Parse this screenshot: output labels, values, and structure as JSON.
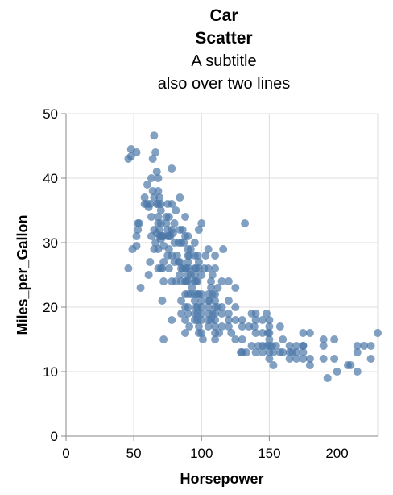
{
  "chart_data": {
    "type": "scatter",
    "title_lines": [
      "Car",
      "Scatter"
    ],
    "subtitle_lines": [
      "A subtitle",
      "also over two lines"
    ],
    "xlabel": "Horsepower",
    "ylabel": "Miles_per_Gallon",
    "xlim": [
      0,
      230
    ],
    "ylim": [
      0,
      50
    ],
    "x_ticks": [
      0,
      50,
      100,
      150,
      200
    ],
    "y_ticks": [
      0,
      10,
      20,
      30,
      40,
      50
    ],
    "grid": true,
    "point_color": "#4c78a8",
    "points": [
      [
        46,
        26
      ],
      [
        46,
        43
      ],
      [
        48,
        44.5
      ],
      [
        48,
        43.4
      ],
      [
        49,
        29
      ],
      [
        52,
        44
      ],
      [
        52,
        31
      ],
      [
        52,
        29.5
      ],
      [
        53,
        33
      ],
      [
        53,
        32
      ],
      [
        54,
        33
      ],
      [
        55,
        23
      ],
      [
        58,
        37
      ],
      [
        58,
        36
      ],
      [
        60,
        39
      ],
      [
        60,
        36
      ],
      [
        61,
        25
      ],
      [
        61,
        35.5
      ],
      [
        62,
        36
      ],
      [
        62,
        27
      ],
      [
        63,
        40
      ],
      [
        63,
        34
      ],
      [
        63,
        31
      ],
      [
        64,
        43
      ],
      [
        64,
        38
      ],
      [
        65,
        46.6
      ],
      [
        65,
        32
      ],
      [
        65,
        29
      ],
      [
        65,
        37
      ],
      [
        66,
        30
      ],
      [
        66,
        44
      ],
      [
        67,
        41
      ],
      [
        67,
        36
      ],
      [
        67,
        31.5
      ],
      [
        68,
        33
      ],
      [
        68,
        34
      ],
      [
        68,
        36
      ],
      [
        68,
        38
      ],
      [
        68,
        40
      ],
      [
        68,
        29
      ],
      [
        68,
        26
      ],
      [
        69,
        31
      ],
      [
        69,
        32
      ],
      [
        69,
        37
      ],
      [
        70,
        31
      ],
      [
        70,
        33
      ],
      [
        70,
        36
      ],
      [
        70,
        26
      ],
      [
        70,
        30.5
      ],
      [
        70,
        35
      ],
      [
        71,
        31
      ],
      [
        71,
        26
      ],
      [
        71,
        21
      ],
      [
        72,
        27
      ],
      [
        72,
        29.5
      ],
      [
        72,
        31
      ],
      [
        72,
        15
      ],
      [
        72,
        24
      ],
      [
        74,
        34
      ],
      [
        74,
        33
      ],
      [
        75,
        32
      ],
      [
        75,
        28
      ],
      [
        75,
        36
      ],
      [
        75,
        31
      ],
      [
        76,
        29
      ],
      [
        76,
        31
      ],
      [
        76,
        26
      ],
      [
        76,
        34
      ],
      [
        77,
        31
      ],
      [
        78,
        41.5
      ],
      [
        78,
        32
      ],
      [
        78,
        28
      ],
      [
        78,
        24
      ],
      [
        78,
        36
      ],
      [
        78,
        18
      ],
      [
        79,
        31.5
      ],
      [
        80,
        30
      ],
      [
        80,
        27
      ],
      [
        80,
        33
      ],
      [
        81,
        24
      ],
      [
        81,
        35
      ],
      [
        82,
        28
      ],
      [
        83,
        30
      ],
      [
        83,
        27
      ],
      [
        84,
        32
      ],
      [
        84,
        25
      ],
      [
        84,
        27
      ],
      [
        84,
        37
      ],
      [
        85,
        24
      ],
      [
        85,
        30
      ],
      [
        85,
        26
      ],
      [
        85,
        21
      ],
      [
        85,
        19
      ],
      [
        86,
        32
      ],
      [
        86,
        26
      ],
      [
        87,
        30
      ],
      [
        88,
        26
      ],
      [
        88,
        24
      ],
      [
        88,
        34
      ],
      [
        88,
        20
      ],
      [
        88,
        31
      ],
      [
        88,
        22
      ],
      [
        88,
        18
      ],
      [
        88,
        16
      ],
      [
        89,
        26
      ],
      [
        89,
        24
      ],
      [
        90,
        28
      ],
      [
        90,
        25
      ],
      [
        90,
        24
      ],
      [
        90,
        22
      ],
      [
        90,
        20
      ],
      [
        90,
        19
      ],
      [
        90,
        31
      ],
      [
        90,
        27
      ],
      [
        90,
        29
      ],
      [
        91,
        26
      ],
      [
        91,
        17
      ],
      [
        91,
        28
      ],
      [
        92,
        25
      ],
      [
        92,
        29
      ],
      [
        92,
        22
      ],
      [
        93,
        23
      ],
      [
        95,
        24
      ],
      [
        95,
        25
      ],
      [
        95,
        28
      ],
      [
        95,
        30
      ],
      [
        95,
        18
      ],
      [
        95,
        19
      ],
      [
        95,
        22
      ],
      [
        95,
        21
      ],
      [
        95,
        26
      ],
      [
        96,
        26
      ],
      [
        96,
        24
      ],
      [
        96,
        20
      ],
      [
        97,
        28
      ],
      [
        97,
        24
      ],
      [
        97,
        22
      ],
      [
        97,
        19
      ],
      [
        97,
        20
      ],
      [
        97,
        18
      ],
      [
        98,
        26
      ],
      [
        98,
        22
      ],
      [
        98,
        27
      ],
      [
        98,
        16
      ],
      [
        98,
        17
      ],
      [
        98,
        32
      ],
      [
        100,
        25
      ],
      [
        100,
        22
      ],
      [
        100,
        18
      ],
      [
        100,
        16
      ],
      [
        100,
        19
      ],
      [
        100,
        21
      ],
      [
        100,
        20
      ],
      [
        100,
        33
      ],
      [
        101,
        15
      ],
      [
        102,
        26
      ],
      [
        103,
        28
      ],
      [
        105,
        29
      ],
      [
        105,
        19
      ],
      [
        105,
        20
      ],
      [
        105,
        26
      ],
      [
        105,
        21
      ],
      [
        105,
        22
      ],
      [
        105,
        18
      ],
      [
        105,
        17
      ],
      [
        106,
        21
      ],
      [
        107,
        24
      ],
      [
        107,
        23
      ],
      [
        107,
        18
      ],
      [
        108,
        25
      ],
      [
        108,
        19
      ],
      [
        108,
        22
      ],
      [
        110,
        18
      ],
      [
        110,
        22
      ],
      [
        110,
        19
      ],
      [
        110,
        16
      ],
      [
        110,
        17
      ],
      [
        110,
        20
      ],
      [
        110,
        28
      ],
      [
        110,
        26
      ],
      [
        110,
        21
      ],
      [
        110,
        15
      ],
      [
        112,
        23
      ],
      [
        112,
        20
      ],
      [
        113,
        16
      ],
      [
        115,
        24
      ],
      [
        115,
        19
      ],
      [
        115,
        20
      ],
      [
        115,
        17
      ],
      [
        116,
        29
      ],
      [
        120,
        18
      ],
      [
        120,
        24
      ],
      [
        120,
        19
      ],
      [
        120,
        21
      ],
      [
        120,
        17
      ],
      [
        122,
        16
      ],
      [
        125,
        20
      ],
      [
        125,
        23
      ],
      [
        125,
        15
      ],
      [
        125,
        18
      ],
      [
        129,
        13
      ],
      [
        130,
        18
      ],
      [
        130,
        17
      ],
      [
        130,
        15
      ],
      [
        130,
        13
      ],
      [
        132,
        33
      ],
      [
        133,
        13
      ],
      [
        135,
        17
      ],
      [
        137,
        14
      ],
      [
        137,
        19
      ],
      [
        139,
        17
      ],
      [
        140,
        19
      ],
      [
        140,
        18
      ],
      [
        140,
        16
      ],
      [
        140,
        13
      ],
      [
        142,
        14
      ],
      [
        145,
        14
      ],
      [
        145,
        16
      ],
      [
        145,
        13
      ],
      [
        145,
        18
      ],
      [
        148,
        19
      ],
      [
        148,
        14
      ],
      [
        149,
        16
      ],
      [
        150,
        13
      ],
      [
        150,
        14
      ],
      [
        150,
        15
      ],
      [
        150,
        16
      ],
      [
        150,
        18
      ],
      [
        150,
        17
      ],
      [
        150,
        12
      ],
      [
        152,
        14
      ],
      [
        153,
        13
      ],
      [
        153,
        11
      ],
      [
        155,
        14
      ],
      [
        158,
        13
      ],
      [
        158,
        17
      ],
      [
        160,
        15
      ],
      [
        160,
        13
      ],
      [
        165,
        13
      ],
      [
        165,
        12
      ],
      [
        165,
        14
      ],
      [
        167,
        13
      ],
      [
        170,
        13
      ],
      [
        170,
        14
      ],
      [
        170,
        12
      ],
      [
        175,
        14
      ],
      [
        175,
        12
      ],
      [
        175,
        13
      ],
      [
        175,
        14
      ],
      [
        175,
        16
      ],
      [
        180,
        12
      ],
      [
        180,
        11
      ],
      [
        180,
        16
      ],
      [
        190,
        14
      ],
      [
        190,
        15
      ],
      [
        190,
        12
      ],
      [
        193,
        9
      ],
      [
        198,
        15
      ],
      [
        198,
        12
      ],
      [
        200,
        10
      ],
      [
        208,
        11
      ],
      [
        210,
        11
      ],
      [
        215,
        13
      ],
      [
        215,
        14
      ],
      [
        215,
        10
      ],
      [
        220,
        14
      ],
      [
        225,
        14
      ],
      [
        225,
        12
      ],
      [
        230,
        16
      ]
    ]
  }
}
